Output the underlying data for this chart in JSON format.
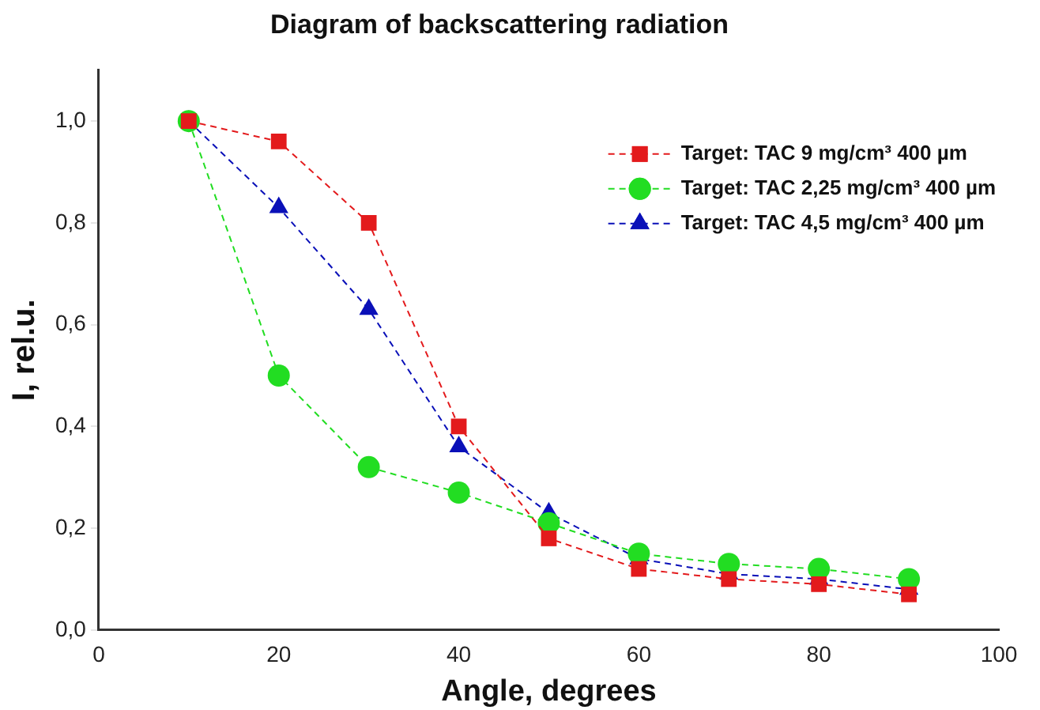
{
  "chart_data": {
    "type": "line",
    "title": "Diagram of backscattering radiation",
    "xlabel": "Angle, degrees",
    "ylabel": "I, rel.u.",
    "x": [
      10,
      20,
      30,
      40,
      50,
      60,
      70,
      80,
      90
    ],
    "series": [
      {
        "name": "Target: TAC 9 mg/cm³ 400 µm",
        "color": "#e31a1c",
        "marker": "square",
        "values": [
          1.0,
          0.96,
          0.8,
          0.4,
          0.18,
          0.12,
          0.1,
          0.09,
          0.07
        ]
      },
      {
        "name": "Target: TAC 2,25 mg/cm³ 400 µm",
        "color": "#22dd22",
        "marker": "circle",
        "values": [
          1.0,
          0.5,
          0.32,
          0.27,
          0.21,
          0.15,
          0.13,
          0.12,
          0.1
        ]
      },
      {
        "name": "Target: TAC 4,5 mg/cm³ 400 µm",
        "color": "#0a10b8",
        "marker": "triangle",
        "values": [
          1.0,
          0.83,
          0.63,
          0.36,
          0.23,
          0.14,
          0.11,
          0.1,
          0.08
        ]
      }
    ],
    "xlim": [
      0,
      100
    ],
    "xticks": [
      0,
      20,
      40,
      60,
      80,
      100
    ],
    "ylim": [
      0,
      1.1
    ],
    "yticks": [
      {
        "value": 0,
        "label": "0,0"
      },
      {
        "value": 0.2,
        "label": "0,2"
      },
      {
        "value": 0.4,
        "label": "0,4"
      },
      {
        "value": 0.6,
        "label": "0,6"
      },
      {
        "value": 0.8,
        "label": "0,8"
      },
      {
        "value": 1.0,
        "label": "1,0"
      }
    ],
    "grid": false,
    "legend": "top right",
    "line_style": "dashed"
  }
}
